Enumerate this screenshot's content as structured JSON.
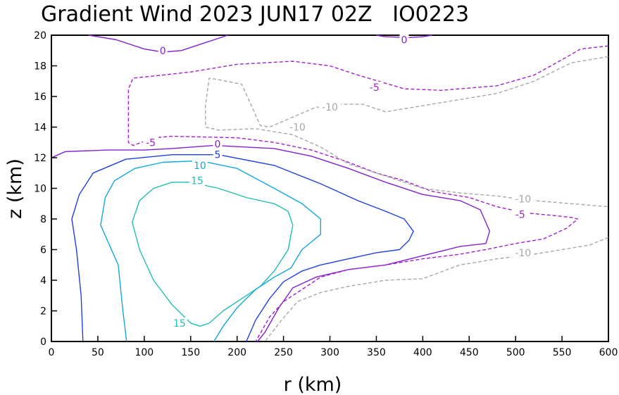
{
  "chart_data": {
    "type": "contour",
    "title": "Gradient Wind 2023 JUN17 02Z   IO0223",
    "xlabel": "r (km)",
    "ylabel": "z (km)",
    "xlim": [
      0,
      600
    ],
    "ylim": [
      0,
      20
    ],
    "xticks": [
      0,
      50,
      100,
      150,
      200,
      250,
      300,
      350,
      400,
      450,
      500,
      550,
      600
    ],
    "yticks": [
      0,
      2,
      4,
      6,
      8,
      10,
      12,
      14,
      16,
      18,
      20
    ],
    "contours": [
      {
        "level": 15,
        "color": "#20c0b0",
        "dashed": false,
        "points": [
          [
            87,
            7.8
          ],
          [
            95,
            9.2
          ],
          [
            110,
            10
          ],
          [
            130,
            10.4
          ],
          [
            150,
            10.4
          ],
          [
            180,
            10
          ],
          [
            210,
            9.4
          ],
          [
            240,
            9
          ],
          [
            255,
            8.5
          ],
          [
            260,
            7.6
          ],
          [
            255,
            6
          ],
          [
            240,
            4.6
          ],
          [
            225,
            3.6
          ],
          [
            210,
            3
          ],
          [
            185,
            2
          ],
          [
            170,
            1.2
          ],
          [
            160,
            1
          ],
          [
            150,
            1.2
          ],
          [
            130,
            2.4
          ],
          [
            110,
            4
          ],
          [
            95,
            6
          ],
          [
            87,
            7.8
          ]
        ],
        "labels": [
          {
            "text": "15",
            "x": 157,
            "y": 10.5
          },
          {
            "text": "15",
            "x": 138,
            "y": 1.2
          }
        ]
      },
      {
        "level": 10,
        "color": "#10a8e0",
        "dashed": false,
        "points": [
          [
            81,
            0
          ],
          [
            77,
            2
          ],
          [
            72,
            5
          ],
          [
            53,
            7.6
          ],
          [
            58,
            9.4
          ],
          [
            68,
            10.5
          ],
          [
            90,
            11.3
          ],
          [
            120,
            11.7
          ],
          [
            160,
            11.8
          ],
          [
            200,
            11.3
          ],
          [
            240,
            10
          ],
          [
            270,
            9
          ],
          [
            290,
            8
          ],
          [
            290,
            7
          ],
          [
            270,
            6
          ],
          [
            258,
            4.8
          ],
          [
            240,
            4.2
          ],
          [
            220,
            3.4
          ],
          [
            200,
            2.2
          ],
          [
            185,
            1
          ],
          [
            175,
            0
          ]
        ],
        "labels": [
          {
            "text": "10",
            "x": 160,
            "y": 11.5
          }
        ]
      },
      {
        "level": 5,
        "color": "#2040e0",
        "dashed": false,
        "points": [
          [
            34,
            0
          ],
          [
            32,
            3
          ],
          [
            27,
            6
          ],
          [
            22,
            8
          ],
          [
            30,
            9.6
          ],
          [
            45,
            11
          ],
          [
            80,
            11.9
          ],
          [
            130,
            12.2
          ],
          [
            180,
            12.2
          ],
          [
            240,
            11.5
          ],
          [
            290,
            10.3
          ],
          [
            330,
            9.2
          ],
          [
            360,
            8.5
          ],
          [
            380,
            8
          ],
          [
            390,
            7.2
          ],
          [
            385,
            6.6
          ],
          [
            375,
            6
          ],
          [
            350,
            5.8
          ],
          [
            320,
            5.4
          ],
          [
            290,
            5
          ],
          [
            270,
            4.6
          ],
          [
            250,
            3.9
          ],
          [
            235,
            2.8
          ],
          [
            220,
            1.4
          ],
          [
            210,
            0
          ]
        ],
        "labels": [
          {
            "text": "5",
            "x": 179,
            "y": 12.2
          }
        ]
      },
      {
        "level": 0,
        "color": "#8020d0",
        "dashed": false,
        "points": [
          [
            0,
            12
          ],
          [
            15,
            12.4
          ],
          [
            60,
            12.5
          ],
          [
            100,
            12.5
          ],
          [
            130,
            12.6
          ],
          [
            175,
            12.8
          ],
          [
            240,
            12.6
          ],
          [
            280,
            12.1
          ],
          [
            320,
            11.3
          ],
          [
            360,
            10.4
          ],
          [
            400,
            9.6
          ],
          [
            440,
            9.2
          ],
          [
            462,
            8.6
          ],
          [
            472,
            7.2
          ],
          [
            468,
            6.4
          ],
          [
            440,
            6.2
          ],
          [
            400,
            5.6
          ],
          [
            360,
            5
          ],
          [
            320,
            4.7
          ],
          [
            285,
            4.2
          ],
          [
            260,
            3.5
          ],
          [
            245,
            2.2
          ],
          [
            230,
            0.6
          ],
          [
            222,
            0
          ]
        ],
        "labels": [
          {
            "text": "0",
            "x": 179,
            "y": 12.9
          }
        ]
      },
      {
        "level": 0,
        "color": "#8020d0",
        "dashed": false,
        "points": [
          [
            40,
            20
          ],
          [
            70,
            19.7
          ],
          [
            100,
            19.1
          ],
          [
            120,
            18.9
          ],
          [
            140,
            19
          ],
          [
            160,
            19.4
          ],
          [
            190,
            20
          ]
        ],
        "labels": [
          {
            "text": "0",
            "x": 120,
            "y": 19
          }
        ]
      },
      {
        "level": 0,
        "color": "#8020d0",
        "dashed": false,
        "points": [
          [
            350,
            20
          ],
          [
            360,
            19.9
          ],
          [
            385,
            19.85
          ],
          [
            400,
            19.9
          ],
          [
            410,
            20
          ]
        ],
        "labels": [
          {
            "text": "0",
            "x": 380,
            "y": 19.7
          }
        ]
      },
      {
        "level": -5,
        "color": "#a020d0",
        "dashed": true,
        "points": [
          [
            600,
            19.3
          ],
          [
            570,
            19.1
          ],
          [
            550,
            18.4
          ],
          [
            520,
            17.4
          ],
          [
            480,
            16.7
          ],
          [
            420,
            16.4
          ],
          [
            380,
            16.5
          ],
          [
            330,
            17.4
          ],
          [
            300,
            18
          ],
          [
            260,
            18.3
          ],
          [
            200,
            18.1
          ],
          [
            150,
            17.6
          ],
          [
            120,
            17.4
          ],
          [
            88,
            17.2
          ],
          [
            83,
            16.5
          ],
          [
            83,
            13
          ],
          [
            88,
            12.8
          ],
          [
            110,
            13.3
          ],
          [
            130,
            13.4
          ],
          [
            200,
            13.3
          ],
          [
            240,
            13
          ],
          [
            280,
            12.5
          ],
          [
            320,
            11.7
          ],
          [
            350,
            11
          ],
          [
            380,
            10.5
          ],
          [
            410,
            9.8
          ],
          [
            450,
            9.4
          ],
          [
            480,
            8.8
          ],
          [
            510,
            8.4
          ],
          [
            545,
            8.2
          ],
          [
            560,
            8.1
          ],
          [
            567,
            8
          ],
          [
            555,
            7.4
          ],
          [
            530,
            6.7
          ],
          [
            500,
            6.4
          ],
          [
            468,
            6
          ],
          [
            440,
            5.7
          ],
          [
            400,
            5.4
          ],
          [
            360,
            5
          ],
          [
            320,
            4.7
          ],
          [
            290,
            4.2
          ],
          [
            270,
            3.4
          ],
          [
            250,
            2.6
          ],
          [
            235,
            1.6
          ],
          [
            220,
            0
          ]
        ],
        "labels": [
          {
            "text": "-5",
            "x": 348,
            "y": 16.6
          },
          {
            "text": "-5",
            "x": 107,
            "y": 13
          },
          {
            "text": "-5",
            "x": 505,
            "y": 8.3
          }
        ]
      },
      {
        "level": -10,
        "color": "#a8a8a8",
        "dashed": true,
        "points": [
          [
            600,
            18.6
          ],
          [
            560,
            18.2
          ],
          [
            520,
            17
          ],
          [
            480,
            16.2
          ],
          [
            450,
            15.9
          ],
          [
            400,
            15.4
          ],
          [
            360,
            15
          ],
          [
            335,
            15.5
          ],
          [
            310,
            15.5
          ],
          [
            300,
            15.3
          ],
          [
            285,
            15.3
          ],
          [
            235,
            14
          ],
          [
            225,
            14.1
          ],
          [
            205,
            16.8
          ],
          [
            180,
            17.1
          ],
          [
            170,
            17.2
          ],
          [
            166,
            15.4
          ],
          [
            166,
            14
          ],
          [
            180,
            13.8
          ],
          [
            220,
            13.9
          ],
          [
            260,
            13.5
          ],
          [
            290,
            12.7
          ],
          [
            320,
            11.6
          ],
          [
            360,
            10.8
          ],
          [
            400,
            10
          ],
          [
            440,
            9.7
          ],
          [
            480,
            9.5
          ],
          [
            520,
            9.2
          ],
          [
            560,
            9
          ],
          [
            600,
            8.8
          ]
        ],
        "labels": [
          {
            "text": "-10",
            "x": 300,
            "y": 15.3
          },
          {
            "text": "-10",
            "x": 265,
            "y": 14
          },
          {
            "text": "-10",
            "x": 508,
            "y": 9.3
          }
        ]
      },
      {
        "level": -10,
        "color": "#a8a8a8",
        "dashed": true,
        "points": [
          [
            600,
            6.8
          ],
          [
            580,
            6.3
          ],
          [
            550,
            6
          ],
          [
            520,
            5.7
          ],
          [
            480,
            5.4
          ],
          [
            440,
            5
          ],
          [
            400,
            4.1
          ],
          [
            360,
            4
          ],
          [
            320,
            3.6
          ],
          [
            290,
            3.2
          ],
          [
            265,
            2.6
          ],
          [
            248,
            1.4
          ],
          [
            230,
            0
          ]
        ],
        "labels": [
          {
            "text": "-10",
            "x": 508,
            "y": 5.8
          }
        ]
      }
    ]
  }
}
